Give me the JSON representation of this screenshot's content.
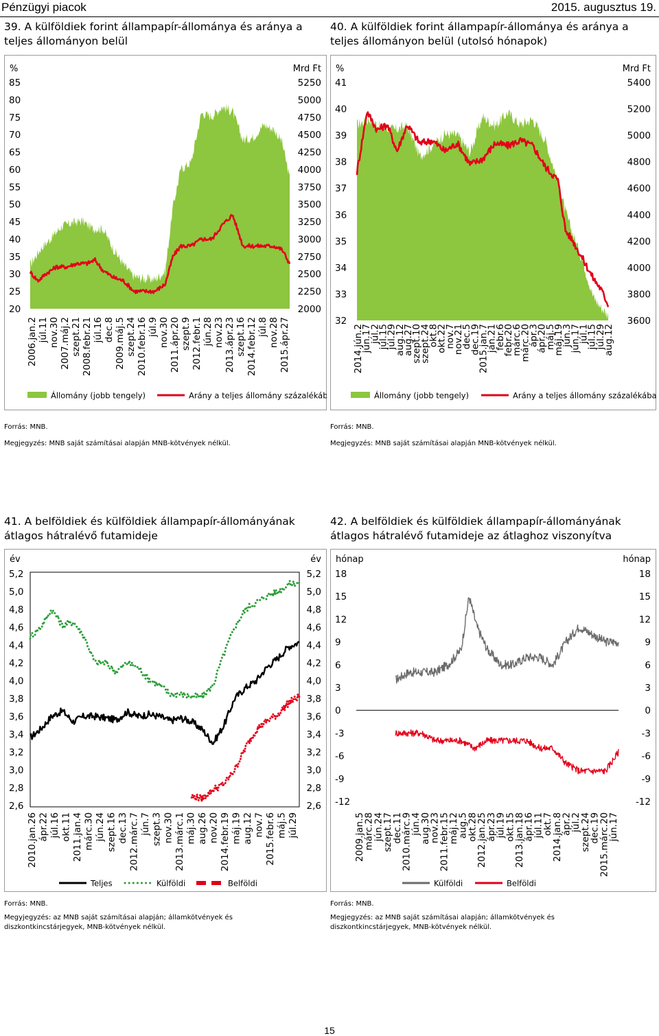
{
  "header": {
    "left": "Pénzügyi piacok",
    "right": "2015. augusztus 19."
  },
  "page_number": "15",
  "charts": [
    {
      "number": "39.",
      "title": "A külföldiek forint állampapír-állománya és aránya a teljes állományon belül",
      "source": "Forrás: MNB.",
      "note": "Megjegyzés: MNB saját számításai alapján MNB-kötvények nélkül.",
      "left_unit": "%",
      "right_unit": "Mrd Ft",
      "left_ticks": [
        "85",
        "80",
        "75",
        "70",
        "65",
        "60",
        "55",
        "50",
        "45",
        "40",
        "35",
        "30",
        "25",
        "20"
      ],
      "right_ticks": [
        "5250",
        "5000",
        "4750",
        "4500",
        "4250",
        "4000",
        "3750",
        "3500",
        "3250",
        "3000",
        "2750",
        "2500",
        "2250",
        "2000"
      ],
      "x_labels": [
        "2006.jan.2",
        "júl.11",
        "nov.30",
        "2007.máj.2",
        "szept.21",
        "2008.febr.21",
        "júl.16",
        "dec.8",
        "2009.máj.5",
        "szept.24",
        "2010.febr.16",
        "júl.9",
        "nov.30",
        "2011.ápr.20",
        "szept.9",
        "2012.febr.1",
        "jún.28",
        "nov.23",
        "2013.ápr.23",
        "szept.16",
        "2014.febr.12",
        "júl.8",
        "nov.28",
        "2015.ápr.27"
      ],
      "legend": [
        {
          "label": "Állomány (jobb tengely)",
          "kind": "area",
          "color": "#8DC63F"
        },
        {
          "label": "Arány a teljes állomány százalékában",
          "kind": "line",
          "color": "#E2001A"
        }
      ]
    },
    {
      "number": "40.",
      "title": "A külföldiek forint állampapír-állománya és aránya a teljes állományon belül (utolsó hónapok)",
      "source": "Forrás: MNB.",
      "note": "Megjegyzés: MNB saját számításai alapján MNB-kötvények nélkül.",
      "left_unit": "%",
      "right_unit": "Mrd Ft",
      "left_ticks": [
        "41",
        "40",
        "39",
        "38",
        "37",
        "36",
        "35",
        "34",
        "33",
        "32"
      ],
      "right_ticks": [
        "5400",
        "5200",
        "5000",
        "4800",
        "4600",
        "4400",
        "4200",
        "4000",
        "3800",
        "3600"
      ],
      "x_labels": [
        "2014.jún.2",
        "jún.17",
        "júl.2",
        "júl.15",
        "júl.29",
        "aug.12",
        "aug.27",
        "szept.10",
        "szept.24",
        "okt.8",
        "okt.22",
        "nov.7",
        "nov.21",
        "dec.5",
        "dec.19",
        "2015.jan.7",
        "jan.21",
        "febr.6",
        "febr.20",
        "márc.6",
        "márc.20",
        "ápr.3",
        "ápr.20",
        "máj.5",
        "máj.19",
        "jún.3",
        "jún.17",
        "júl.1",
        "júl.15",
        "júl.29",
        "aug.12"
      ],
      "legend": [
        {
          "label": "Állomány (jobb tengely)",
          "kind": "area",
          "color": "#8DC63F"
        },
        {
          "label": "Arány a teljes állomány százalékában",
          "kind": "line",
          "color": "#E2001A"
        }
      ]
    },
    {
      "number": "41.",
      "title": "A belföldiek és külföldiek állampapír-állományának átlagos hátralévő futamideje",
      "source": "Forrás: MNB.",
      "note": "Megyjegyzés: az MNB saját számításai alapján; államkötvények és diszkontkincstárjegyek, MNB-kötvények nélkül.",
      "left_unit": "év",
      "right_unit": "év",
      "left_ticks": [
        "5,2",
        "5,0",
        "4,8",
        "4,6",
        "4,4",
        "4,2",
        "4,0",
        "3,8",
        "3,6",
        "3,4",
        "3,2",
        "3,0",
        "2,8",
        "2,6"
      ],
      "right_ticks": [
        "5,2",
        "5,0",
        "4,8",
        "4,6",
        "4,4",
        "4,2",
        "4,0",
        "3,8",
        "3,6",
        "3,4",
        "3,2",
        "3,0",
        "2,8",
        "2,6"
      ],
      "x_labels": [
        "2010.jan.26",
        "ápr.22",
        "júl.16",
        "okt.11",
        "2011.jan.4",
        "márc.30",
        "jún.24",
        "szept.16",
        "dec.13",
        "2012.márc.7",
        "jún.7",
        "szept.3",
        "nov.30",
        "2013.márc.1",
        "máj.30",
        "aug.26",
        "nov.20",
        "2014.febr.19",
        "máj.19",
        "aug.12",
        "nov.7",
        "2015.febr.6",
        "máj.5",
        "júl.29"
      ],
      "legend": [
        {
          "label": "Teljes",
          "kind": "line",
          "color": "#000000"
        },
        {
          "label": "Külföldi",
          "kind": "dots",
          "color": "#2E9E3A"
        },
        {
          "label": "Belföldi",
          "kind": "dash",
          "color": "#E2001A"
        }
      ]
    },
    {
      "number": "42.",
      "title": "A belföldiek és külföldiek állampapír-állományának átlagos hátralévő futamideje az átlaghoz viszonyítva",
      "source": "Forrás: MNB.",
      "note": "Megjegyzés: az MNB saját számításai alapján; államkötvények és diszkontkincstárjegyek, MNB-kötvények nélkül.",
      "left_unit": "hónap",
      "right_unit": "hónap",
      "left_ticks": [
        "18",
        "15",
        "12",
        "9",
        "6",
        "3",
        "0",
        "-3",
        "-6",
        "-9",
        "-12"
      ],
      "right_ticks": [
        "18",
        "15",
        "12",
        "9",
        "6",
        "3",
        "0",
        "-3",
        "-6",
        "-9",
        "-12"
      ],
      "x_labels": [
        "2009.jan.5",
        "márc.28",
        "jún.24",
        "szept.17",
        "dec.11",
        "2010.márc.9",
        "jún.4",
        "aug.30",
        "nov.23",
        "2011.febr.15",
        "máj.12",
        "aug.5",
        "okt.28",
        "2012.jan.25",
        "ápr.23",
        "júl.19",
        "okt.15",
        "2013.jan.18",
        "ápr.16",
        "júl.11",
        "okt.7",
        "2014.jan.8",
        "ápr.2",
        "júl.2",
        "szept.24",
        "dec.19",
        "2015.márc.20",
        "jún.17"
      ],
      "legend": [
        {
          "label": "Külföldi",
          "kind": "line",
          "color": "#6B6B6B"
        },
        {
          "label": "Belföldi",
          "kind": "line",
          "color": "#E2001A"
        }
      ]
    }
  ],
  "chart_data": [
    {
      "type": "area+line",
      "title": "A külföldiek forint állampapír-állománya és aránya a teljes állományon belül",
      "series": [
        {
          "name": "Állomány (jobb tengely)",
          "axis": "right",
          "unit": "Mrd Ft",
          "x": [
            0,
            0.04,
            0.08,
            0.12,
            0.16,
            0.2,
            0.24,
            0.28,
            0.32,
            0.36,
            0.4,
            0.44,
            0.48,
            0.52,
            0.55,
            0.58,
            0.62,
            0.66,
            0.7,
            0.74,
            0.78,
            0.82,
            0.86,
            0.9,
            0.94,
            0.97,
            1
          ],
          "values": [
            2630,
            2860,
            3010,
            3180,
            3230,
            3260,
            3150,
            3150,
            2860,
            2630,
            2460,
            2430,
            2420,
            2530,
            3460,
            4000,
            4100,
            4810,
            4760,
            4900,
            4830,
            4420,
            4460,
            4640,
            4570,
            4400,
            3870
          ]
        },
        {
          "name": "Arány a teljes állomány százalékában",
          "axis": "left",
          "unit": "%",
          "x": [
            0,
            0.03,
            0.06,
            0.1,
            0.14,
            0.18,
            0.22,
            0.25,
            0.28,
            0.32,
            0.36,
            0.4,
            0.44,
            0.48,
            0.52,
            0.55,
            0.58,
            0.62,
            0.66,
            0.7,
            0.74,
            0.78,
            0.82,
            0.86,
            0.9,
            0.94,
            0.97,
            1
          ],
          "values": [
            30.5,
            28,
            30,
            32,
            32,
            33,
            33,
            34,
            31,
            29,
            28,
            25,
            25,
            25,
            27,
            35,
            38,
            38,
            40,
            40,
            44,
            47,
            38,
            38,
            38,
            38,
            37,
            33
          ]
        }
      ],
      "ylim_left": [
        20,
        85
      ],
      "ylim_right": [
        2000,
        5250
      ]
    },
    {
      "type": "area+line",
      "title": "A külföldiek forint állampapír-állománya és aránya a teljes állományon belül (utolsó hónapok)",
      "series": [
        {
          "name": "Állomány (jobb tengely)",
          "axis": "right",
          "unit": "Mrd Ft",
          "x": [
            0,
            0.05,
            0.1,
            0.15,
            0.2,
            0.25,
            0.3,
            0.35,
            0.4,
            0.45,
            0.5,
            0.55,
            0.6,
            0.65,
            0.7,
            0.75,
            0.8,
            0.83,
            0.86,
            0.9,
            0.94,
            0.97,
            1
          ],
          "values": [
            5080,
            5120,
            5060,
            5040,
            5070,
            4840,
            4920,
            5010,
            5000,
            4870,
            5140,
            5070,
            5170,
            5080,
            5120,
            4960,
            4650,
            4420,
            4250,
            4040,
            3780,
            3700,
            3640
          ]
        },
        {
          "name": "Arány a teljes állomány százalékában",
          "axis": "left",
          "unit": "%",
          "x": [
            0,
            0.04,
            0.08,
            0.12,
            0.16,
            0.2,
            0.25,
            0.3,
            0.35,
            0.4,
            0.45,
            0.5,
            0.55,
            0.6,
            0.65,
            0.7,
            0.75,
            0.8,
            0.83,
            0.86,
            0.9,
            0.94,
            0.97,
            1
          ],
          "values": [
            37.6,
            39.9,
            39.2,
            39.4,
            38.4,
            39.4,
            38.7,
            38.8,
            38.4,
            38.7,
            37.9,
            38.1,
            38.7,
            38.6,
            38.8,
            38.6,
            37.8,
            37.3,
            35.4,
            35,
            34.3,
            33.6,
            33.2,
            32.6
          ]
        }
      ],
      "ylim_left": [
        32,
        41
      ],
      "ylim_right": [
        3600,
        5400
      ]
    },
    {
      "type": "line",
      "title": "A belföldiek és külföldiek állampapír-állományának átlagos hátralévő futamideje",
      "series": [
        {
          "name": "Teljes",
          "x": [
            0,
            0.04,
            0.08,
            0.12,
            0.16,
            0.2,
            0.24,
            0.28,
            0.32,
            0.36,
            0.4,
            0.44,
            0.48,
            0.52,
            0.56,
            0.6,
            0.64,
            0.68,
            0.72,
            0.76,
            0.8,
            0.84,
            0.88,
            0.92,
            0.96,
            1
          ],
          "values": [
            3.36,
            3.46,
            3.6,
            3.66,
            3.54,
            3.6,
            3.6,
            3.58,
            3.56,
            3.65,
            3.6,
            3.62,
            3.6,
            3.55,
            3.58,
            3.54,
            3.45,
            3.3,
            3.5,
            3.8,
            3.92,
            4.0,
            4.15,
            4.25,
            4.38,
            4.43
          ]
        },
        {
          "name": "Külföldi",
          "x": [
            0,
            0.04,
            0.08,
            0.12,
            0.16,
            0.2,
            0.24,
            0.28,
            0.32,
            0.36,
            0.4,
            0.44,
            0.48,
            0.52,
            0.56,
            0.6,
            0.64,
            0.68,
            0.72,
            0.76,
            0.8,
            0.84,
            0.88,
            0.92,
            0.96,
            1
          ],
          "values": [
            4.5,
            4.6,
            4.8,
            4.62,
            4.66,
            4.5,
            4.2,
            4.2,
            4.1,
            4.2,
            4.15,
            4.02,
            3.95,
            3.85,
            3.85,
            3.82,
            3.82,
            3.95,
            4.3,
            4.6,
            4.8,
            4.88,
            4.95,
            5.0,
            5.08,
            5.1
          ]
        },
        {
          "name": "Belföldi",
          "x": [
            0.6,
            0.64,
            0.68,
            0.72,
            0.76,
            0.8,
            0.84,
            0.88,
            0.92,
            0.96,
            1
          ],
          "values": [
            2.7,
            2.68,
            2.78,
            2.84,
            3.0,
            3.25,
            3.45,
            3.55,
            3.62,
            3.75,
            3.82
          ]
        }
      ],
      "ylim": [
        2.6,
        5.2
      ]
    },
    {
      "type": "line",
      "title": "A belföldiek és külföldiek állampapír-állományának átlagos hátralévő futamideje az átlaghoz viszonyítva",
      "series": [
        {
          "name": "Külföldi",
          "x": [
            0.15,
            0.2,
            0.25,
            0.3,
            0.35,
            0.4,
            0.43,
            0.46,
            0.5,
            0.55,
            0.6,
            0.65,
            0.7,
            0.75,
            0.8,
            0.85,
            0.9,
            0.95,
            1
          ],
          "values": [
            4,
            5,
            5,
            5,
            6,
            8,
            15,
            11,
            8,
            6,
            6,
            7,
            7,
            6,
            9,
            11,
            10,
            9,
            9
          ]
        },
        {
          "name": "Belföldi",
          "x": [
            0.15,
            0.2,
            0.25,
            0.3,
            0.35,
            0.4,
            0.45,
            0.5,
            0.55,
            0.6,
            0.65,
            0.7,
            0.75,
            0.8,
            0.85,
            0.9,
            0.95,
            1
          ],
          "values": [
            -3,
            -3,
            -3,
            -4,
            -4,
            -4,
            -5,
            -4,
            -4,
            -4,
            -4,
            -5,
            -5,
            -7,
            -8,
            -8,
            -8,
            -5.5
          ]
        }
      ],
      "ylim": [
        -12,
        18
      ]
    }
  ]
}
